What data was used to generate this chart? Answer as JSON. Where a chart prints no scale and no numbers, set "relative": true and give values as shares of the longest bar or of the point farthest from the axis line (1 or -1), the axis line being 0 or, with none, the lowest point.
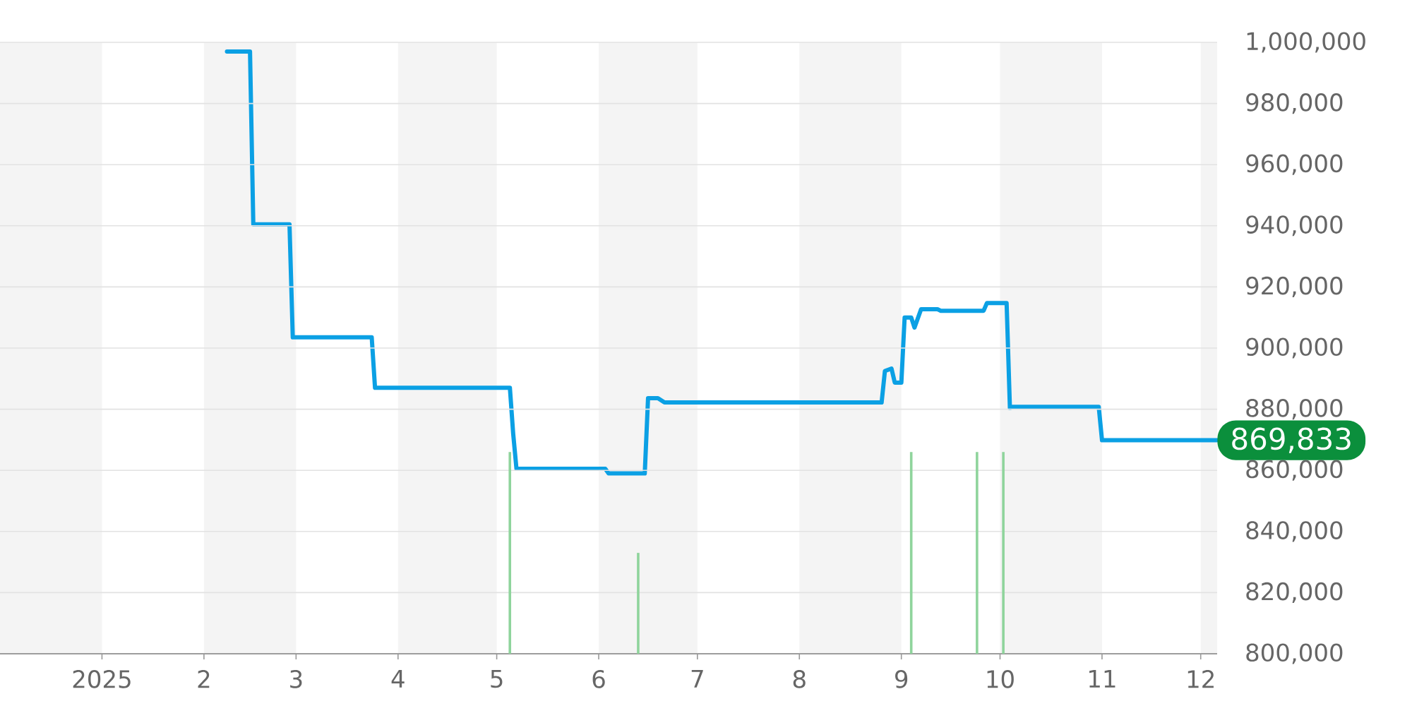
{
  "chart_data": [
    {
      "type": "line",
      "x": [
        "2025-02-08",
        "2025-02-15",
        "2025-02-16",
        "2025-02-27",
        "2025-02-28",
        "2025-03-24",
        "2025-03-25",
        "2025-05-05",
        "2025-05-06",
        "2025-05-07",
        "2025-06-03",
        "2025-06-04",
        "2025-06-15",
        "2025-06-16",
        "2025-06-19",
        "2025-06-21",
        "2025-08-26",
        "2025-08-27",
        "2025-08-29",
        "2025-08-30",
        "2025-09-01",
        "2025-09-02",
        "2025-09-04",
        "2025-09-05",
        "2025-09-07",
        "2025-09-12",
        "2025-09-13",
        "2025-09-26",
        "2025-09-27",
        "2025-10-03",
        "2025-10-04",
        "2025-10-05",
        "2025-10-31",
        "2025-11-01",
        "2025-12-06"
      ],
      "series": [
        {
          "color": "#0ba0e4",
          "values": [
            997000,
            997000,
            940500,
            940500,
            903500,
            903500,
            887000,
            887000,
            872000,
            860500,
            860500,
            859000,
            859000,
            883600,
            883600,
            882200,
            882200,
            892500,
            893300,
            888700,
            888700,
            910000,
            910000,
            906700,
            912700,
            912700,
            912200,
            912200,
            914700,
            914700,
            880400,
            880800,
            880800,
            869833,
            869833
          ]
        }
      ],
      "xlim": [
        "2024-12-01",
        "2025-12-06"
      ],
      "tick_labels": "y",
      "ylim": [
        800000,
        1000000
      ],
      "yticks": [
        {
          "value": 800000,
          "label": "800,000"
        },
        {
          "value": 820000,
          "label": "820,000"
        },
        {
          "value": 840000,
          "label": "840,000"
        },
        {
          "value": 860000,
          "label": "860,000"
        },
        {
          "value": 880000,
          "label": "880,000"
        },
        {
          "value": 900000,
          "label": "900,000"
        },
        {
          "value": 920000,
          "label": "920,000"
        },
        {
          "value": 940000,
          "label": "940,000"
        },
        {
          "value": 960000,
          "label": "960,000"
        },
        {
          "value": 980000,
          "label": "980,000"
        },
        {
          "value": 1000000,
          "label": "1,000,000"
        }
      ],
      "grid": "y",
      "bands": [
        {
          "axis": "x",
          "from": "2024-12-01",
          "to": "2025-01-01",
          "color": "#f4f4f4"
        },
        {
          "axis": "x",
          "from": "2025-02-01",
          "to": "2025-03-01",
          "color": "#f4f4f4"
        },
        {
          "axis": "x",
          "from": "2025-04-01",
          "to": "2025-05-01",
          "color": "#f4f4f4"
        },
        {
          "axis": "x",
          "from": "2025-06-01",
          "to": "2025-07-01",
          "color": "#f4f4f4"
        },
        {
          "axis": "x",
          "from": "2025-08-01",
          "to": "2025-09-01",
          "color": "#f4f4f4"
        },
        {
          "axis": "x",
          "from": "2025-10-01",
          "to": "2025-11-01",
          "color": "#f4f4f4"
        },
        {
          "axis": "x",
          "from": "2025-12-01",
          "to": "2025-12-06",
          "color": "#f4f4f4"
        }
      ],
      "annotations": [
        {
          "text": "869,833",
          "x": "2025-12-06",
          "y": 869833
        }
      ]
    },
    {
      "type": "bar",
      "relative": true,
      "tick_labels": "x",
      "xlim": [
        "2024-12-01",
        "2025-12-06"
      ],
      "xticks": [
        {
          "value": "2025-01-01",
          "label": "2025"
        },
        {
          "value": "2025-02-01",
          "label": "2"
        },
        {
          "value": "2025-03-01",
          "label": "3"
        },
        {
          "value": "2025-04-01",
          "label": "4"
        },
        {
          "value": "2025-05-01",
          "label": "5"
        },
        {
          "value": "2025-06-01",
          "label": "6"
        },
        {
          "value": "2025-07-01",
          "label": "7"
        },
        {
          "value": "2025-08-01",
          "label": "8"
        },
        {
          "value": "2025-09-01",
          "label": "9"
        },
        {
          "value": "2025-10-01",
          "label": "10"
        },
        {
          "value": "2025-11-01",
          "label": "11"
        },
        {
          "value": "2025-12-01",
          "label": "12"
        }
      ],
      "x": [
        "2025-05-05",
        "2025-06-13",
        "2025-09-04",
        "2025-09-24",
        "2025-10-02"
      ],
      "values": [
        1,
        0.5,
        1,
        1,
        1
      ],
      "color": "#8fd49c"
    }
  ]
}
